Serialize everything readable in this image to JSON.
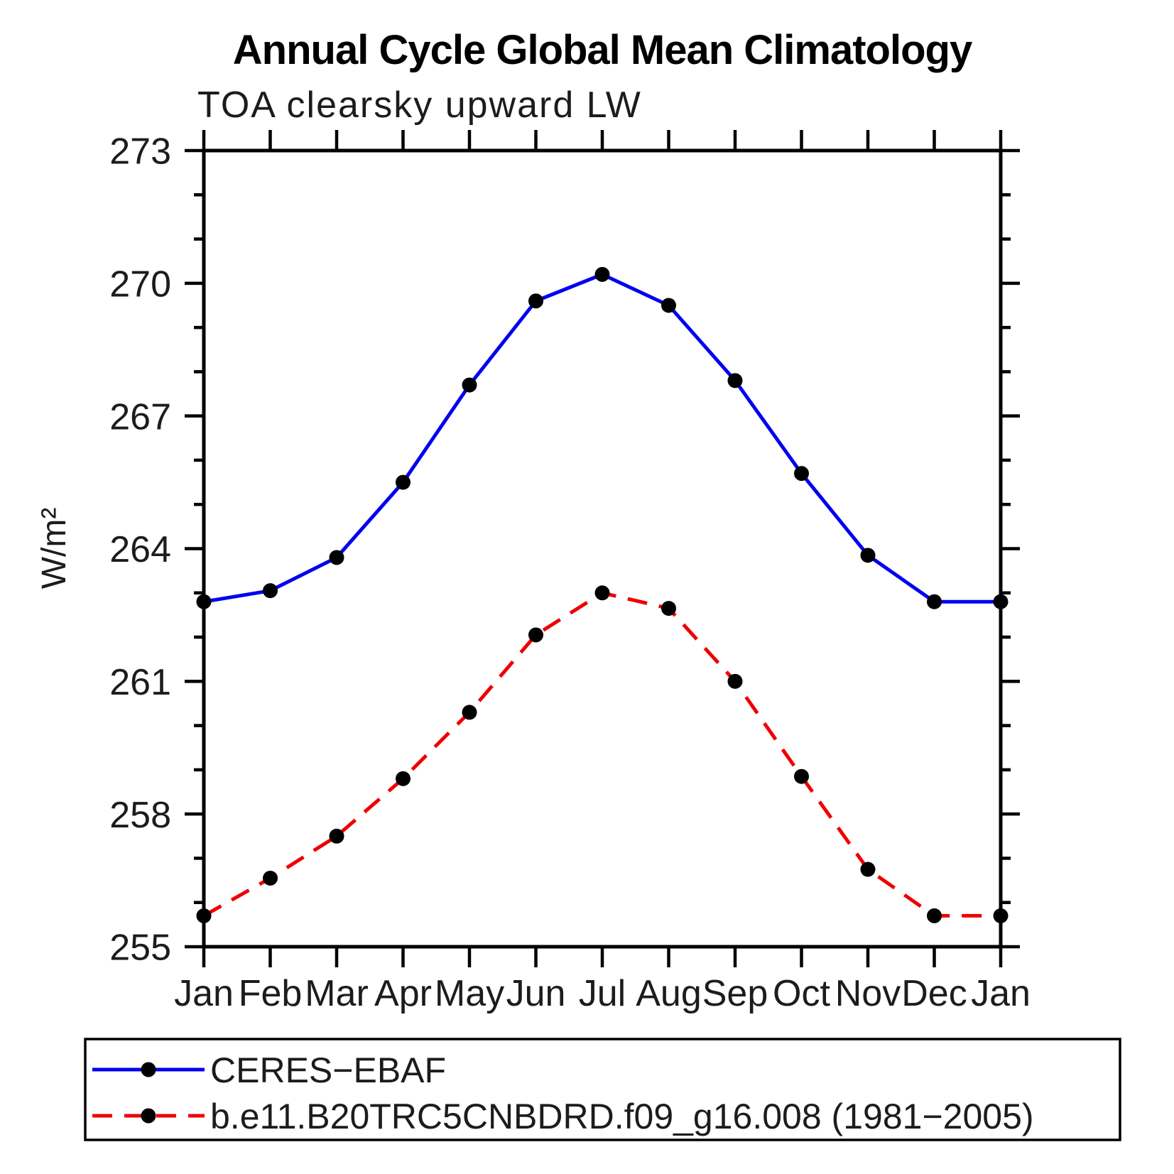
{
  "header": {
    "title": "Annual Cycle Global Mean Climatology",
    "subtitle": "TOA clearsky upward LW"
  },
  "chart_data": {
    "type": "line",
    "categories": [
      "Jan",
      "Feb",
      "Mar",
      "Apr",
      "May",
      "Jun",
      "Jul",
      "Aug",
      "Sep",
      "Oct",
      "Nov",
      "Dec",
      "Jan"
    ],
    "series": [
      {
        "name": "CERES−EBAF",
        "color": "#0000ee",
        "line_style": "solid",
        "marker": "filled-circle",
        "marker_color": "#000000",
        "values": [
          262.8,
          263.05,
          263.8,
          265.5,
          267.7,
          269.6,
          270.2,
          269.5,
          267.8,
          265.7,
          263.85,
          262.8,
          262.8
        ]
      },
      {
        "name": "b.e11.B20TRC5CNBDRD.f09_g16.008 (1981−2005)",
        "color": "#ee0000",
        "line_style": "dashed",
        "marker": "filled-circle",
        "marker_color": "#000000",
        "values": [
          255.7,
          256.55,
          257.5,
          258.8,
          260.3,
          262.05,
          263.0,
          262.65,
          261.0,
          258.85,
          256.75,
          255.7,
          255.7
        ]
      }
    ],
    "title": "Annual Cycle Global Mean Climatology",
    "subtitle": "TOA clearsky upward LW",
    "xlabel": "",
    "ylabel": "W/m²",
    "ylim": [
      255,
      273
    ],
    "yticks_major": [
      255,
      258,
      261,
      264,
      267,
      270,
      273
    ],
    "ytick_minor_step": 1,
    "grid": "off",
    "frame": "box-with-outward-ticks",
    "legend_position": "bottom-left-box"
  },
  "legend": {
    "items": [
      {
        "label": "CERES−EBAF"
      },
      {
        "label": "b.e11.B20TRC5CNBDRD.f09_g16.008 (1981−2005)"
      }
    ]
  }
}
